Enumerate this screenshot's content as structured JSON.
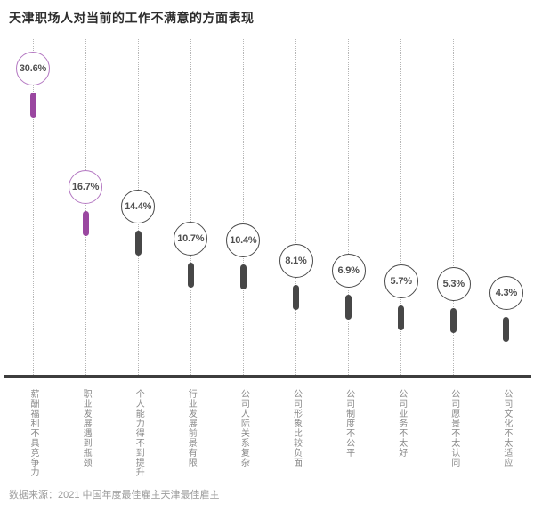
{
  "title": "天津职场人对当前的工作不满意的方面表现",
  "source": "数据来源：2021 中国年度最佳雇主天津最佳雇主",
  "chart_data": {
    "type": "bar",
    "subtype": "lollipop",
    "title": "天津职场人对当前的工作不满意的方面表现",
    "categories": [
      "薪酬福利不具竞争力",
      "职业发展遇到瓶颈",
      "个人能力得不到提升",
      "行业发展前景有限",
      "公司人际关系复杂",
      "公司形象比较负面",
      "公司制度不公平",
      "公司业务不太好",
      "公司愿景不太认同",
      "公司文化不太适应"
    ],
    "values": [
      30.6,
      16.7,
      14.4,
      10.7,
      10.4,
      8.1,
      6.9,
      5.7,
      5.3,
      4.3
    ],
    "value_labels": [
      "30.6%",
      "16.7%",
      "14.4%",
      "10.7%",
      "10.4%",
      "8.1%",
      "6.9%",
      "5.7%",
      "5.3%",
      "4.3%"
    ],
    "unit": "%",
    "highlight_count": 2,
    "xlabel": "",
    "ylabel": "",
    "ylim": [
      0,
      33
    ],
    "grid": "vertical-dotted",
    "legend": "none",
    "colors": {
      "highlight_stroke": "#b478c2",
      "highlight_fill": "#9a47a0",
      "default_stroke": "#4b4b4b",
      "default_fill": "#474747",
      "guide_line": "#b6b6b6",
      "baseline": "#3d3d3d",
      "category_text": "#8a8a8a",
      "value_text": "#4f4f4f",
      "title_text": "#2d2d2d",
      "source_text": "#9b9b9b"
    }
  }
}
